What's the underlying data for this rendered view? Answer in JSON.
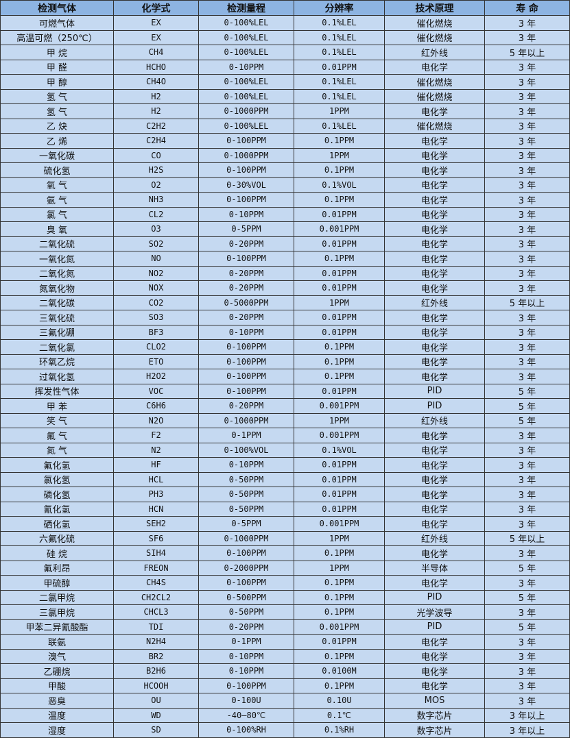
{
  "table": {
    "headers": [
      "检测气体",
      "化学式",
      "检测量程",
      "分辨率",
      "技术原理",
      "寿 命"
    ],
    "rows": [
      [
        "可燃气体",
        "EX",
        "0-100%LEL",
        "0.1%LEL",
        "催化燃烧",
        "3 年"
      ],
      [
        "高温可燃（250℃）",
        "EX",
        "0-100%LEL",
        "0.1%LEL",
        "催化燃烧",
        "3 年"
      ],
      [
        "甲 烷",
        "CH4",
        "0-100%LEL",
        "0.1%LEL",
        "红外线",
        "5 年以上"
      ],
      [
        "甲 醛",
        "HCHO",
        "0-10PPM",
        "0.01PPM",
        "电化学",
        "3 年"
      ],
      [
        "甲 醇",
        "CH4O",
        "0-100%LEL",
        "0.1%LEL",
        "催化燃烧",
        "3 年"
      ],
      [
        "氢 气",
        "H2",
        "0-100%LEL",
        "0.1%LEL",
        "催化燃烧",
        "3 年"
      ],
      [
        "氢 气",
        "H2",
        "0-1000PPM",
        "1PPM",
        "电化学",
        "3 年"
      ],
      [
        "乙 炔",
        "C2H2",
        "0-100%LEL",
        "0.1%LEL",
        "催化燃烧",
        "3 年"
      ],
      [
        "乙 烯",
        "C2H4",
        "0-100PPM",
        "0.1PPM",
        "电化学",
        "3 年"
      ],
      [
        "一氧化碳",
        "CO",
        "0-1000PPM",
        "1PPM",
        "电化学",
        "3 年"
      ],
      [
        "硫化氢",
        "H2S",
        "0-100PPM",
        "0.1PPM",
        "电化学",
        "3 年"
      ],
      [
        "氧 气",
        "O2",
        "0-30%VOL",
        "0.1%VOL",
        "电化学",
        "3 年"
      ],
      [
        "氨 气",
        "NH3",
        "0-100PPM",
        "0.1PPM",
        "电化学",
        "3 年"
      ],
      [
        "氯 气",
        "CL2",
        "0-10PPM",
        "0.01PPM",
        "电化学",
        "3 年"
      ],
      [
        "臭 氧",
        "O3",
        "0-5PPM",
        "0.001PPM",
        "电化学",
        "3 年"
      ],
      [
        "二氧化硫",
        "SO2",
        "0-20PPM",
        "0.01PPM",
        "电化学",
        "3 年"
      ],
      [
        "一氧化氮",
        "NO",
        "0-100PPM",
        "0.1PPM",
        "电化学",
        "3 年"
      ],
      [
        "二氧化氮",
        "NO2",
        "0-20PPM",
        "0.01PPM",
        "电化学",
        "3 年"
      ],
      [
        "氮氧化物",
        "NOX",
        "0-20PPM",
        "0.01PPM",
        "电化学",
        "3 年"
      ],
      [
        "二氧化碳",
        "CO2",
        "0-5000PPM",
        "1PPM",
        "红外线",
        "5 年以上"
      ],
      [
        "三氧化硫",
        "SO3",
        "0-20PPM",
        "0.01PPM",
        "电化学",
        "3 年"
      ],
      [
        "三氟化硼",
        "BF3",
        "0-10PPM",
        "0.01PPM",
        "电化学",
        "3 年"
      ],
      [
        "二氧化氯",
        "CLO2",
        "0-100PPM",
        "0.1PPM",
        "电化学",
        "3 年"
      ],
      [
        "环氧乙烷",
        "ETO",
        "0-100PPM",
        "0.1PPM",
        "电化学",
        "3 年"
      ],
      [
        "过氧化氢",
        "H2O2",
        "0-100PPM",
        "0.1PPM",
        "电化学",
        "3 年"
      ],
      [
        "挥发性气体",
        "VOC",
        "0-100PPM",
        "0.01PPM",
        "PID",
        "5 年"
      ],
      [
        "甲 苯",
        "C6H6",
        "0-20PPM",
        "0.001PPM",
        "PID",
        "5 年"
      ],
      [
        "笑 气",
        "N2O",
        "0-1000PPM",
        "1PPM",
        "红外线",
        "5 年"
      ],
      [
        "氟 气",
        "F2",
        "0-1PPM",
        "0.001PPM",
        "电化学",
        "3 年"
      ],
      [
        "氮 气",
        "N2",
        "0-100%VOL",
        "0.1%VOL",
        "电化学",
        "3 年"
      ],
      [
        "氟化氢",
        "HF",
        "0-10PPM",
        "0.01PPM",
        "电化学",
        "3 年"
      ],
      [
        "氯化氢",
        "HCL",
        "0-50PPM",
        "0.01PPM",
        "电化学",
        "3 年"
      ],
      [
        "磷化氢",
        "PH3",
        "0-50PPM",
        "0.01PPM",
        "电化学",
        "3 年"
      ],
      [
        "氰化氢",
        "HCN",
        "0-50PPM",
        "0.01PPM",
        "电化学",
        "3 年"
      ],
      [
        "硒化氢",
        "SEH2",
        "0-5PPM",
        "0.001PPM",
        "电化学",
        "3 年"
      ],
      [
        "六氟化硫",
        "SF6",
        "0-1000PPM",
        "1PPM",
        "红外线",
        "5 年以上"
      ],
      [
        "硅 烷",
        "SIH4",
        "0-100PPM",
        "0.1PPM",
        "电化学",
        "3 年"
      ],
      [
        "氟利昂",
        "FREON",
        "0-2000PPM",
        "1PPM",
        "半导体",
        "5 年"
      ],
      [
        "甲硫醇",
        "CH4S",
        "0-100PPM",
        "0.1PPM",
        "电化学",
        "3 年"
      ],
      [
        "二氯甲烷",
        "CH2CL2",
        "0-500PPM",
        "0.1PPM",
        "PID",
        "5 年"
      ],
      [
        "三氯甲烷",
        "CHCL3",
        "0-50PPM",
        "0.1PPM",
        "光学波导",
        "3 年"
      ],
      [
        "甲苯二异氰酸酯",
        "TDI",
        "0-20PPM",
        "0.001PPM",
        "PID",
        "5 年"
      ],
      [
        "联氨",
        "N2H4",
        "0-1PPM",
        "0.01PPM",
        "电化学",
        "3 年"
      ],
      [
        "溴气",
        "BR2",
        "0-10PPM",
        "0.1PPM",
        "电化学",
        "3 年"
      ],
      [
        "乙硼烷",
        "B2H6",
        "0-10PPM",
        "0.0100M",
        "电化学",
        "3 年"
      ],
      [
        "甲酸",
        "HCOOH",
        "0-100PPM",
        "0.1PPM",
        "电化学",
        "3 年"
      ],
      [
        "恶臭",
        "OU",
        "0-100U",
        "0.10U",
        "MOS",
        "3 年"
      ],
      [
        "温度",
        "WD",
        "-40—80℃",
        "0.1℃",
        "数字芯片",
        "3 年以上"
      ],
      [
        "湿度",
        "SD",
        "0-100%RH",
        "0.1%RH",
        "数字芯片",
        "3 年以上"
      ]
    ]
  },
  "colors": {
    "header_bg": "#8db4e2",
    "row_bg": "#c5d9f1",
    "border": "#333333"
  }
}
